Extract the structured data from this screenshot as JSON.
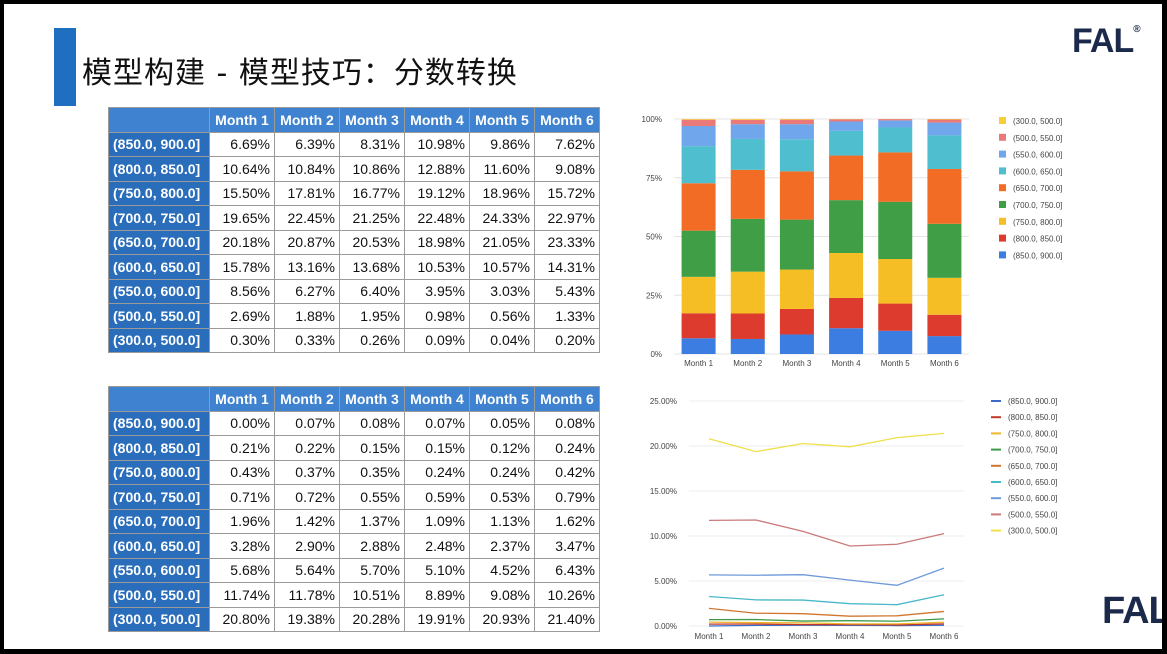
{
  "title": "模型构建 - 模型技巧：分数转换",
  "logo": "FAL",
  "logo_mark": "®",
  "colors": {
    "accent": "#1f6fc0",
    "header": "#3f82cf",
    "rowheader": "#2a6dbb"
  },
  "table1": {
    "headers": [
      "Month 1",
      "Month 2",
      "Month 3",
      "Month 4",
      "Month 5",
      "Month 6"
    ],
    "rows": [
      {
        "label": "(850.0, 900.0]",
        "cells": [
          "6.69%",
          "6.39%",
          "8.31%",
          "10.98%",
          "9.86%",
          "7.62%"
        ]
      },
      {
        "label": "(800.0, 850.0]",
        "cells": [
          "10.64%",
          "10.84%",
          "10.86%",
          "12.88%",
          "11.60%",
          "9.08%"
        ]
      },
      {
        "label": "(750.0, 800.0]",
        "cells": [
          "15.50%",
          "17.81%",
          "16.77%",
          "19.12%",
          "18.96%",
          "15.72%"
        ]
      },
      {
        "label": "(700.0, 750.0]",
        "cells": [
          "19.65%",
          "22.45%",
          "21.25%",
          "22.48%",
          "24.33%",
          "22.97%"
        ]
      },
      {
        "label": "(650.0, 700.0]",
        "cells": [
          "20.18%",
          "20.87%",
          "20.53%",
          "18.98%",
          "21.05%",
          "23.33%"
        ]
      },
      {
        "label": "(600.0, 650.0]",
        "cells": [
          "15.78%",
          "13.16%",
          "13.68%",
          "10.53%",
          "10.57%",
          "14.31%"
        ]
      },
      {
        "label": "(550.0, 600.0]",
        "cells": [
          "8.56%",
          "6.27%",
          "6.40%",
          "3.95%",
          "3.03%",
          "5.43%"
        ]
      },
      {
        "label": "(500.0, 550.0]",
        "cells": [
          "2.69%",
          "1.88%",
          "1.95%",
          "0.98%",
          "0.56%",
          "1.33%"
        ]
      },
      {
        "label": "(300.0, 500.0]",
        "cells": [
          "0.30%",
          "0.33%",
          "0.26%",
          "0.09%",
          "0.04%",
          "0.20%"
        ]
      }
    ]
  },
  "table2": {
    "headers": [
      "Month 1",
      "Month 2",
      "Month 3",
      "Month 4",
      "Month 5",
      "Month 6"
    ],
    "rows": [
      {
        "label": "(850.0, 900.0]",
        "cells": [
          "0.00%",
          "0.07%",
          "0.08%",
          "0.07%",
          "0.05%",
          "0.08%"
        ]
      },
      {
        "label": "(800.0, 850.0]",
        "cells": [
          "0.21%",
          "0.22%",
          "0.15%",
          "0.15%",
          "0.12%",
          "0.24%"
        ]
      },
      {
        "label": "(750.0, 800.0]",
        "cells": [
          "0.43%",
          "0.37%",
          "0.35%",
          "0.24%",
          "0.24%",
          "0.42%"
        ]
      },
      {
        "label": "(700.0, 750.0]",
        "cells": [
          "0.71%",
          "0.72%",
          "0.55%",
          "0.59%",
          "0.53%",
          "0.79%"
        ]
      },
      {
        "label": "(650.0, 700.0]",
        "cells": [
          "1.96%",
          "1.42%",
          "1.37%",
          "1.09%",
          "1.13%",
          "1.62%"
        ]
      },
      {
        "label": "(600.0, 650.0]",
        "cells": [
          "3.28%",
          "2.90%",
          "2.88%",
          "2.48%",
          "2.37%",
          "3.47%"
        ]
      },
      {
        "label": "(550.0, 600.0]",
        "cells": [
          "5.68%",
          "5.64%",
          "5.70%",
          "5.10%",
          "4.52%",
          "6.43%"
        ]
      },
      {
        "label": "(500.0, 550.0]",
        "cells": [
          "11.74%",
          "11.78%",
          "10.51%",
          "8.89%",
          "9.08%",
          "10.26%"
        ]
      },
      {
        "label": "(300.0, 500.0]",
        "cells": [
          "20.80%",
          "19.38%",
          "20.28%",
          "19.91%",
          "20.93%",
          "21.40%"
        ]
      }
    ]
  },
  "chart_data": [
    {
      "type": "bar",
      "stacked": "percent",
      "categories": [
        "Month 1",
        "Month 2",
        "Month 3",
        "Month 4",
        "Month 5",
        "Month 6"
      ],
      "yticks": [
        "0%",
        "25%",
        "50%",
        "75%",
        "100%"
      ],
      "ylim": [
        0,
        100
      ],
      "legend_position": "right",
      "legend": [
        "(300.0, 500.0]",
        "(500.0, 550.0]",
        "(550.0, 600.0]",
        "(600.0, 650.0]",
        "(650.0, 700.0]",
        "(700.0, 750.0]",
        "(750.0, 800.0]",
        "(800.0, 850.0]",
        "(850.0, 900.0]"
      ],
      "series": [
        {
          "name": "(850.0, 900.0]",
          "color": "#3b7de0",
          "values": [
            6.69,
            6.39,
            8.31,
            10.98,
            9.86,
            7.62
          ]
        },
        {
          "name": "(800.0, 850.0]",
          "color": "#dd3b2e",
          "values": [
            10.64,
            10.84,
            10.86,
            12.88,
            11.6,
            9.08
          ]
        },
        {
          "name": "(750.0, 800.0]",
          "color": "#f6be25",
          "values": [
            15.5,
            17.81,
            16.77,
            19.12,
            18.96,
            15.72
          ]
        },
        {
          "name": "(700.0, 750.0]",
          "color": "#3f9e46",
          "values": [
            19.65,
            22.45,
            21.25,
            22.48,
            24.33,
            22.97
          ]
        },
        {
          "name": "(650.0, 700.0]",
          "color": "#f26c25",
          "values": [
            20.18,
            20.87,
            20.53,
            18.98,
            21.05,
            23.33
          ]
        },
        {
          "name": "(600.0, 650.0]",
          "color": "#4fbfcf",
          "values": [
            15.78,
            13.16,
            13.68,
            10.53,
            10.57,
            14.31
          ]
        },
        {
          "name": "(550.0, 600.0]",
          "color": "#6fa6ec",
          "values": [
            8.56,
            6.27,
            6.4,
            3.95,
            3.03,
            5.43
          ]
        },
        {
          "name": "(500.0, 550.0]",
          "color": "#ea7a7a",
          "values": [
            2.69,
            1.88,
            1.95,
            0.98,
            0.56,
            1.33
          ]
        },
        {
          "name": "(300.0, 500.0]",
          "color": "#f8cd3a",
          "values": [
            0.3,
            0.33,
            0.26,
            0.09,
            0.04,
            0.2
          ]
        }
      ]
    },
    {
      "type": "line",
      "categories": [
        "Month 1",
        "Month 2",
        "Month 3",
        "Month 4",
        "Month 5",
        "Month 6"
      ],
      "yticks": [
        "0.00%",
        "5.00%",
        "10.00%",
        "15.00%",
        "20.00%",
        "25.00%"
      ],
      "ylim": [
        0,
        25
      ],
      "legend_position": "right",
      "series": [
        {
          "name": "(850.0, 900.0]",
          "color": "#3b6cc7",
          "values": [
            0.0,
            0.07,
            0.08,
            0.07,
            0.05,
            0.08
          ]
        },
        {
          "name": "(800.0, 850.0]",
          "color": "#c0392b",
          "values": [
            0.21,
            0.22,
            0.15,
            0.15,
            0.12,
            0.24
          ]
        },
        {
          "name": "(750.0, 800.0]",
          "color": "#f0b52a",
          "values": [
            0.43,
            0.37,
            0.35,
            0.24,
            0.24,
            0.42
          ]
        },
        {
          "name": "(700.0, 750.0]",
          "color": "#3d9a47",
          "values": [
            0.71,
            0.72,
            0.55,
            0.59,
            0.53,
            0.79
          ]
        },
        {
          "name": "(650.0, 700.0]",
          "color": "#d0762f",
          "values": [
            1.96,
            1.42,
            1.37,
            1.09,
            1.13,
            1.62
          ]
        },
        {
          "name": "(600.0, 650.0]",
          "color": "#49b8c9",
          "values": [
            3.28,
            2.9,
            2.88,
            2.48,
            2.37,
            3.47
          ]
        },
        {
          "name": "(550.0, 600.0]",
          "color": "#6e9ad8",
          "values": [
            5.68,
            5.64,
            5.7,
            5.1,
            4.52,
            6.43
          ]
        },
        {
          "name": "(500.0, 550.0]",
          "color": "#c97a7a",
          "values": [
            11.74,
            11.78,
            10.51,
            8.89,
            9.08,
            10.26
          ]
        },
        {
          "name": "(300.0, 500.0]",
          "color": "#efe04a",
          "values": [
            20.8,
            19.38,
            20.28,
            19.91,
            20.93,
            21.4
          ]
        }
      ]
    }
  ]
}
